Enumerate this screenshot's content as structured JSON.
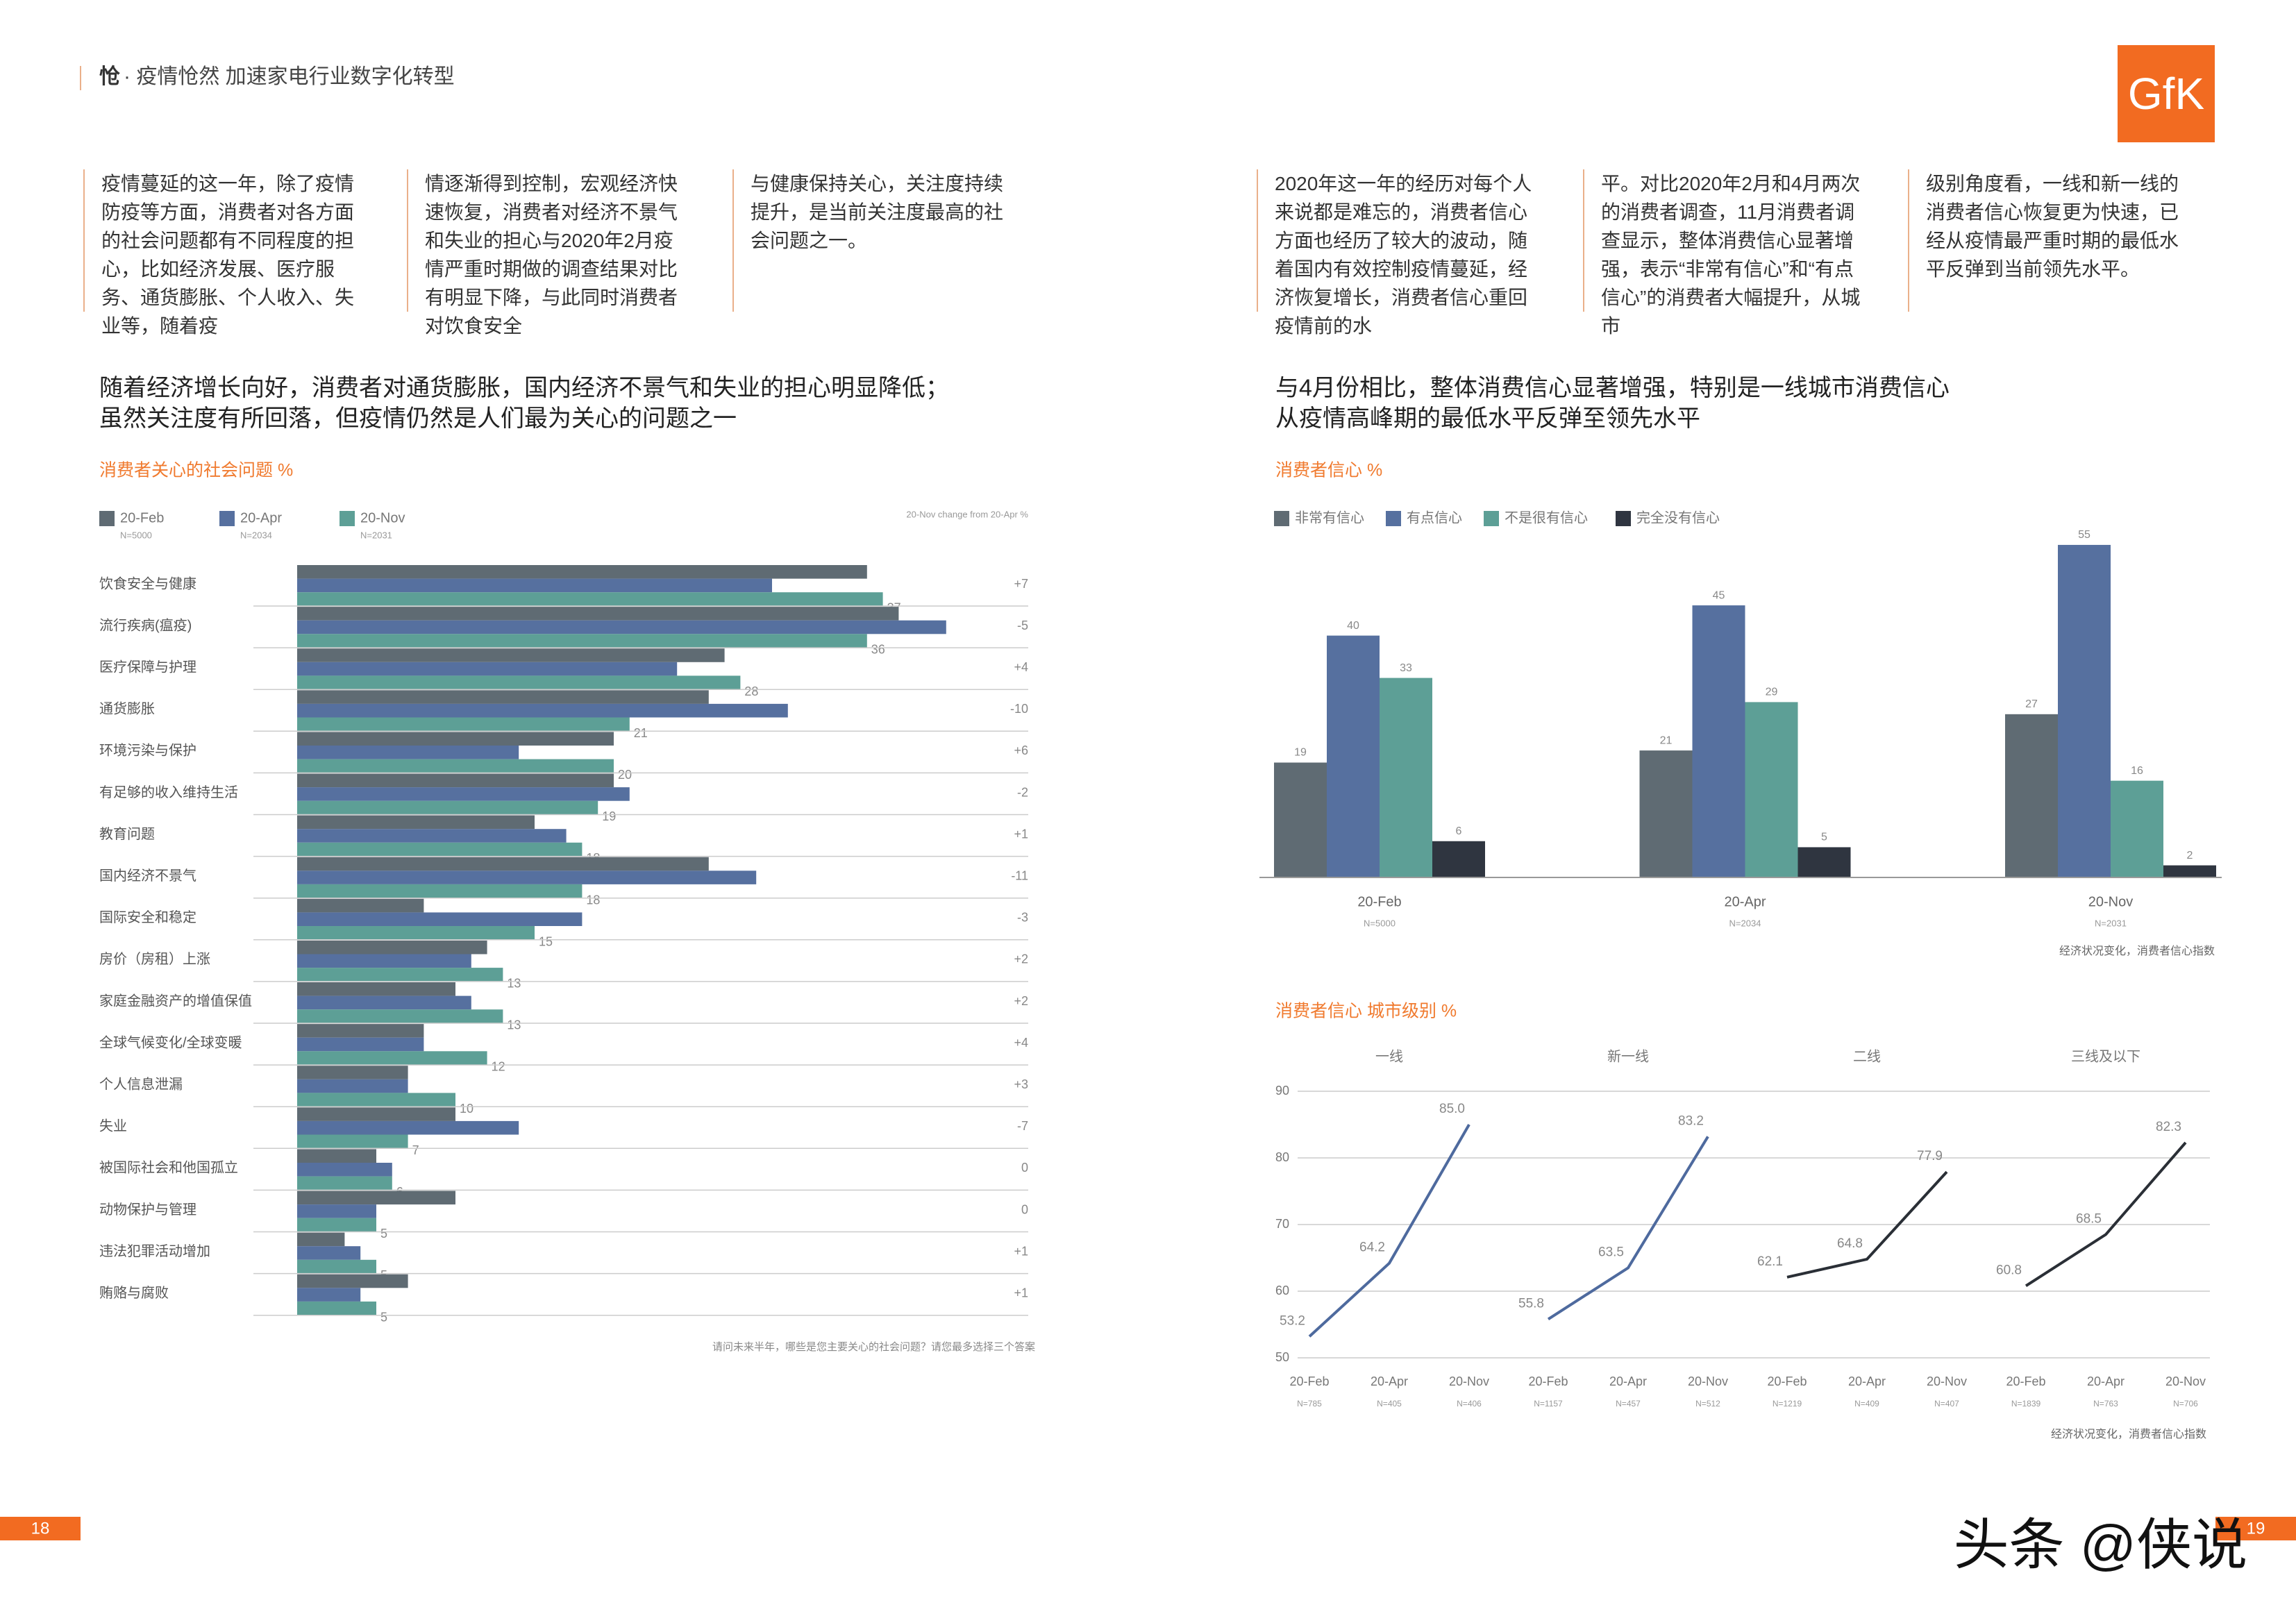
{
  "header": {
    "bold": "怆",
    "title": "· 疫情怆然 加速家电行业数字化转型",
    "logo": "GfK"
  },
  "left": {
    "paragraphs": [
      "疫情蔓延的这一年，除了疫情防疫等方面，消费者对各方面的社会问题都有不同程度的担心，比如经济发展、医疗服务、通货膨胀、个人收入、失业等，随着疫",
      "情逐渐得到控制，宏观经济快速恢复，消费者对经济不景气和失业的担心与2020年2月疫情严重时期做的调查结果对比有明显下降，与此同时消费者对饮食安全",
      "与健康保持关心，关注度持续提升，是当前关注度最高的社会问题之一。"
    ],
    "headline": [
      "随着经济增长向好，消费者对通货膨胀，国内经济不景气和失业的担心明显降低；",
      "虽然关注度有所回落，但疫情仍然是人们最为关心的问题之一"
    ]
  },
  "right": {
    "paragraphs": [
      "2020年这一年的经历对每个人来说都是难忘的，消费者信心方面也经历了较大的波动，随着国内有效控制疫情蔓延，经济恢复增长，消费者信心重回疫情前的水",
      "平。对比2020年2月和4月两次的消费者调查，11月消费者调查显示，整体消费信心显著增强，表示“非常有信心”和“有点信心”的消费者大幅提升，从城市",
      "级别角度看，一线和新一线的消费者信心恢复更为快速，已经从疫情最严重时期的最低水平反弹到当前领先水平。"
    ],
    "headline": [
      "与4月份相比，整体消费信心显著增强，特别是一线城市消费信心",
      "从疫情高峰期的最低水平反弹至领先水平"
    ]
  },
  "chart_data": [
    {
      "type": "hbar",
      "title": "消费者关心的社会问题 %",
      "note": "20-Nov change from 20-Apr %",
      "categories": [
        "饮食安全与健康",
        "流行疾病(瘟疫)",
        "医疗保障与护理",
        "通货膨胀",
        "环境污染与保护",
        "有足够的收入维持生活",
        "教育问题",
        "国内经济不景气",
        "国际安全和稳定",
        "房价（房租）上涨",
        "家庭金融资产的增值保值",
        "全球气候变化/全球变暖",
        "个人信息泄漏",
        "失业",
        "被国际社会和他国孤立",
        "动物保护与管理",
        "违法犯罪活动增加",
        "贿赂与腐败"
      ],
      "series": [
        {
          "name": "20-Feb",
          "sample": "N=5000",
          "color": "#5f6b73",
          "show_labels": false,
          "values": [
            36,
            38,
            27,
            26,
            20,
            20,
            15,
            26,
            8,
            12,
            10,
            8,
            7,
            10,
            5,
            10,
            3,
            7
          ]
        },
        {
          "name": "20-Apr",
          "sample": "N=2034",
          "color": "#56709f",
          "show_labels": false,
          "values": [
            30,
            41,
            24,
            31,
            14,
            21,
            17,
            29,
            18,
            11,
            11,
            8,
            7,
            14,
            6,
            5,
            4,
            4
          ]
        },
        {
          "name": "20-Nov",
          "sample": "N=2031",
          "color": "#5d9f96",
          "show_labels": true,
          "values": [
            37,
            36,
            28,
            21,
            20,
            19,
            18,
            18,
            15,
            13,
            13,
            12,
            10,
            7,
            6,
            5,
            5,
            5
          ]
        }
      ],
      "changes": [
        "+7",
        "-5",
        "+4",
        "-10",
        "+6",
        "-2",
        "+1",
        "-11",
        "-3",
        "+2",
        "+2",
        "+4",
        "+3",
        "-7",
        "0",
        "0",
        "+1",
        "+1"
      ],
      "footnote": "请问未来半年，哪些是您主要关心的社会问题？请您最多选择三个答案"
    },
    {
      "type": "bar",
      "title": "消费者信心 %",
      "categories": [
        "20-Feb",
        "20-Apr",
        "20-Nov"
      ],
      "samples": [
        "N=5000",
        "N=2034",
        "N=2031"
      ],
      "series": [
        {
          "name": "非常有信心",
          "color": "#5f6b73",
          "values": [
            19,
            21,
            27
          ]
        },
        {
          "name": "有点信心",
          "color": "#56709f",
          "values": [
            40,
            45,
            55
          ]
        },
        {
          "name": "不是很有信心",
          "color": "#5d9f96",
          "values": [
            33,
            29,
            16
          ]
        },
        {
          "name": "完全没有信心",
          "color": "#2f3540",
          "values": [
            6,
            5,
            2
          ]
        }
      ],
      "source": "经济状况变化，消费者信心指数"
    },
    {
      "type": "line",
      "title": "消费者信心 城市级别 %",
      "ylim": [
        50,
        90
      ],
      "yticks": [
        50,
        60,
        70,
        80,
        90
      ],
      "grid": true,
      "categories": [
        "20-Feb",
        "20-Apr",
        "20-Nov",
        "20-Feb",
        "20-Apr",
        "20-Nov",
        "20-Feb",
        "20-Apr",
        "20-Nov",
        "20-Feb",
        "20-Apr",
        "20-Nov"
      ],
      "samples": [
        "N=785",
        "N=405",
        "N=406",
        "N=1157",
        "N=457",
        "N=512",
        "N=1219",
        "N=409",
        "N=407",
        "N=1839",
        "N=763",
        "N=706"
      ],
      "series": [
        {
          "name": "一线",
          "color": "#4e6a9e",
          "values": [
            53.2,
            64.2,
            85,
            null,
            null,
            null,
            null,
            null,
            null,
            null,
            null,
            null
          ],
          "value_labels": [
            "53.2",
            "64.2",
            "85.0",
            null,
            null,
            null,
            null,
            null,
            null,
            null,
            null,
            null
          ]
        },
        {
          "name": "新一线",
          "color": "#4e6a9e",
          "values": [
            null,
            null,
            null,
            55.8,
            63.5,
            83.2,
            null,
            null,
            null,
            null,
            null,
            null
          ],
          "value_labels": [
            null,
            null,
            null,
            "55.8",
            "63.5",
            "83.2",
            null,
            null,
            null,
            null,
            null,
            null
          ]
        },
        {
          "name": "二线",
          "color": "#2a2f36",
          "values": [
            null,
            null,
            null,
            null,
            null,
            null,
            62.1,
            64.8,
            77.9,
            null,
            null,
            null
          ],
          "value_labels": [
            null,
            null,
            null,
            null,
            null,
            null,
            "62.1",
            "64.8",
            "77.9",
            null,
            null,
            null
          ]
        },
        {
          "name": "三线及以下",
          "color": "#2a2f36",
          "values": [
            null,
            null,
            null,
            null,
            null,
            null,
            null,
            null,
            null,
            60.8,
            68.5,
            82.3
          ],
          "value_labels": [
            null,
            null,
            null,
            null,
            null,
            null,
            null,
            null,
            null,
            "60.8",
            "68.5",
            "82.3"
          ]
        }
      ],
      "source": "经济状况变化，消费者信心指数"
    }
  ],
  "footer": {
    "page_left": "18",
    "page_right": "19",
    "watermark": "头条 @侠说"
  }
}
